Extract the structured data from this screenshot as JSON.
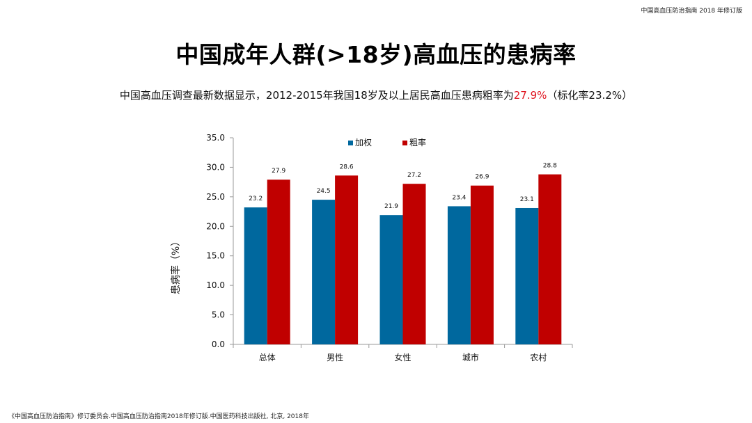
{
  "header": {
    "reference": "中国高血压防治指南 2018 年修订版"
  },
  "slide": {
    "title": "中国成年人群(>18岁)高血压的患病率",
    "subtitle_pre": "中国高血压调查最新数据显示，2012-2015年我国18岁及以上居民高血压患病粗率为",
    "subtitle_highlight": "27.9%",
    "subtitle_post": "（标化率23.2%）"
  },
  "colors": {
    "weighted": "#00689e",
    "crude": "#c00000",
    "highlight": "#e0141e"
  },
  "chart_data": {
    "type": "bar",
    "ylabel": "患病率（%）",
    "ylim": [
      0,
      35
    ],
    "yticks": [
      "0.0",
      "5.0",
      "10.0",
      "15.0",
      "20.0",
      "25.0",
      "30.0",
      "35.0"
    ],
    "categories": [
      "总体",
      "男性",
      "女性",
      "城市",
      "农村"
    ],
    "series": [
      {
        "name": "加权",
        "values": [
          23.2,
          24.5,
          21.9,
          23.4,
          23.1
        ]
      },
      {
        "name": "粗率",
        "values": [
          27.9,
          28.6,
          27.2,
          26.9,
          28.8
        ]
      }
    ],
    "legend": "top-center"
  },
  "footer": {
    "citation": "《中国高血压防治指南》修订委员会.中国高血压防治指南2018年修订版.中国医药科技出版社, 北京, 2018年"
  }
}
